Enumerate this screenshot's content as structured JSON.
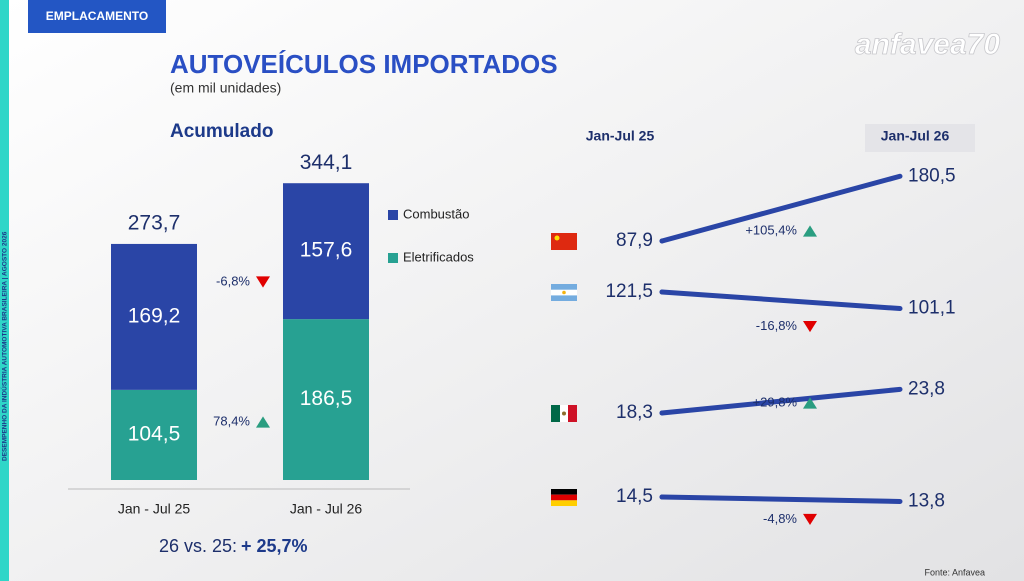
{
  "header_tag": "EMPLACAMENTO",
  "logo": "anfavea70",
  "side_text": "DESEMPENHO DA INDÚSTRIA AUTOMOTIVA BRASILEIRA | AGOSTO 2026",
  "title": "AUTOVEÍCULOS IMPORTADOS",
  "subtitle": "(em mil unidades)",
  "source": "Fonte: Anfavea",
  "chart_data": [
    {
      "type": "stacked_bar",
      "title": "Acumulado",
      "categories": [
        "Jan - Jul 25",
        "Jan - Jul 26"
      ],
      "series": [
        {
          "name": "Eletrificados",
          "color": "#27a192",
          "values": [
            104.5,
            186.5
          ],
          "value_labels": [
            "104,5",
            "186,5"
          ],
          "change": 78.4,
          "change_label": "78,4%"
        },
        {
          "name": "Combustão",
          "color": "#2a45a6",
          "values": [
            169.2,
            157.6
          ],
          "value_labels": [
            "169,2",
            "157,6"
          ],
          "change": -6.8,
          "change_label": "-6,8%"
        }
      ],
      "totals": [
        273.7,
        344.1
      ],
      "total_labels": [
        "273,7",
        "344,1"
      ],
      "annotation": {
        "text": "26 vs. 25:",
        "value": 25.7,
        "label": "+ 25,7%"
      }
    },
    {
      "type": "slope",
      "columns": [
        "Jan-Jul 25",
        "Jan-Jul 26"
      ],
      "color": "#2a45a6",
      "series": [
        {
          "flag": "cn",
          "values": [
            87.9,
            180.5
          ],
          "value_labels": [
            "87,9",
            "180,5"
          ],
          "change": 105.4,
          "change_label": "+105,4%"
        },
        {
          "flag": "ar",
          "values": [
            121.5,
            101.1
          ],
          "value_labels": [
            "121,5",
            "101,1"
          ],
          "change": -16.8,
          "change_label": "-16,8%"
        },
        {
          "flag": "mx",
          "values": [
            18.3,
            23.8
          ],
          "value_labels": [
            "18,3",
            "23,8"
          ],
          "change": 29.8,
          "change_label": "+29,8%"
        },
        {
          "flag": "de",
          "values": [
            14.5,
            13.8
          ],
          "value_labels": [
            "14,5",
            "13,8"
          ],
          "change": -4.8,
          "change_label": "-4,8%"
        }
      ]
    }
  ]
}
